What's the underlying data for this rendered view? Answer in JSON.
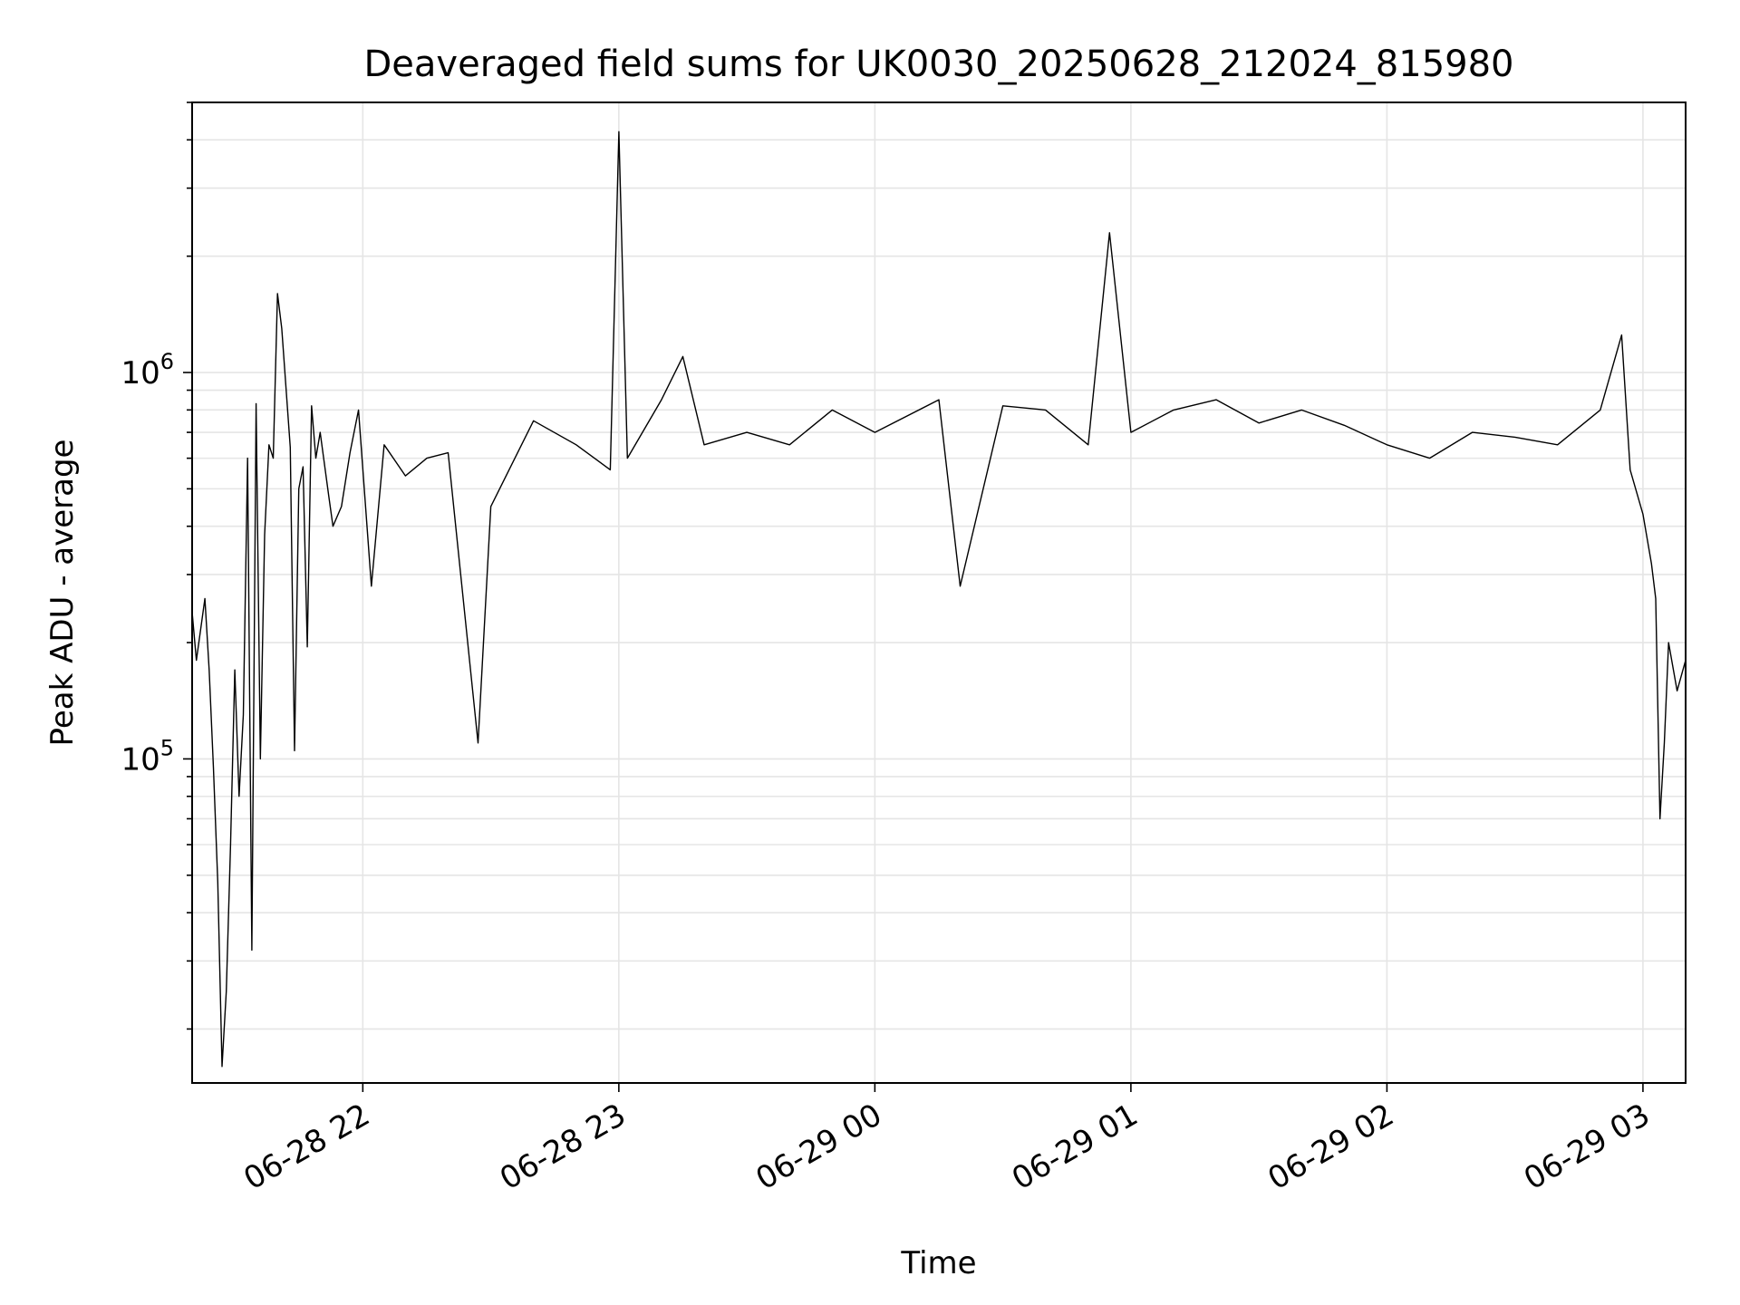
{
  "chart_data": {
    "type": "line",
    "title": "Deaveraged field sums for UK0030_20250628_212024_815980",
    "xlabel": "Time",
    "ylabel": "Peak ADU - average",
    "x_range": [
      "2025-06-28 21:20",
      "2025-06-29 03:10"
    ],
    "y_range": [
      14500,
      5000000
    ],
    "y_scale": "log",
    "grid": "on",
    "x_ticks": [
      {
        "value": "2025-06-28 22:00",
        "label": "06-28 22"
      },
      {
        "value": "2025-06-28 23:00",
        "label": "06-28 23"
      },
      {
        "value": "2025-06-29 00:00",
        "label": "06-29 00"
      },
      {
        "value": "2025-06-29 01:00",
        "label": "06-29 01"
      },
      {
        "value": "2025-06-29 02:00",
        "label": "06-29 02"
      },
      {
        "value": "2025-06-29 03:00",
        "label": "06-29 03"
      }
    ],
    "y_ticks": [
      {
        "value": 100000,
        "base": "10",
        "exp": "5"
      },
      {
        "value": 1000000,
        "base": "10",
        "exp": "6"
      }
    ],
    "colors": {
      "line": "#000000",
      "grid": "#e5e5e5"
    },
    "series": [
      {
        "x": [
          "2025-06-28 21:20",
          "2025-06-28 21:21",
          "2025-06-28 21:23",
          "2025-06-28 21:24",
          "2025-06-28 21:25",
          "2025-06-28 21:26",
          "2025-06-28 21:27",
          "2025-06-28 21:28",
          "2025-06-28 21:29",
          "2025-06-28 21:30",
          "2025-06-28 21:31",
          "2025-06-28 21:32",
          "2025-06-28 21:33",
          "2025-06-28 21:34",
          "2025-06-28 21:35",
          "2025-06-28 21:36",
          "2025-06-28 21:37",
          "2025-06-28 21:38",
          "2025-06-28 21:39",
          "2025-06-28 21:40",
          "2025-06-28 21:41",
          "2025-06-28 21:43",
          "2025-06-28 21:44",
          "2025-06-28 21:45",
          "2025-06-28 21:46",
          "2025-06-28 21:47",
          "2025-06-28 21:48",
          "2025-06-28 21:49",
          "2025-06-28 21:50",
          "2025-06-28 21:52",
          "2025-06-28 21:53",
          "2025-06-28 21:55",
          "2025-06-28 21:57",
          "2025-06-28 21:59",
          "2025-06-28 22:02",
          "2025-06-28 22:05",
          "2025-06-28 22:10",
          "2025-06-28 22:15",
          "2025-06-28 22:20",
          "2025-06-28 22:27",
          "2025-06-28 22:30",
          "2025-06-28 22:40",
          "2025-06-28 22:50",
          "2025-06-28 22:58",
          "2025-06-28 23:00",
          "2025-06-28 23:02",
          "2025-06-28 23:10",
          "2025-06-28 23:15",
          "2025-06-28 23:20",
          "2025-06-28 23:30",
          "2025-06-28 23:40",
          "2025-06-28 23:50",
          "2025-06-29 00:00",
          "2025-06-29 00:15",
          "2025-06-29 00:20",
          "2025-06-29 00:30",
          "2025-06-29 00:40",
          "2025-06-29 00:50",
          "2025-06-29 00:55",
          "2025-06-29 01:00",
          "2025-06-29 01:10",
          "2025-06-29 01:20",
          "2025-06-29 01:30",
          "2025-06-29 01:40",
          "2025-06-29 01:50",
          "2025-06-29 02:00",
          "2025-06-29 02:10",
          "2025-06-29 02:20",
          "2025-06-29 02:30",
          "2025-06-29 02:40",
          "2025-06-29 02:50",
          "2025-06-29 02:55",
          "2025-06-29 02:57",
          "2025-06-29 03:00",
          "2025-06-29 03:02",
          "2025-06-29 03:03",
          "2025-06-29 03:04",
          "2025-06-29 03:05",
          "2025-06-29 03:06",
          "2025-06-29 03:08",
          "2025-06-29 03:10"
        ],
        "y": [
          240000,
          180000,
          260000,
          170000,
          95000,
          48000,
          16000,
          25000,
          60000,
          170000,
          80000,
          130000,
          600000,
          32000,
          830000,
          100000,
          380000,
          650000,
          600000,
          1600000,
          1300000,
          640000,
          105000,
          500000,
          570000,
          195000,
          820000,
          600000,
          700000,
          480000,
          400000,
          450000,
          620000,
          800000,
          280000,
          650000,
          540000,
          600000,
          620000,
          110000,
          450000,
          750000,
          650000,
          560000,
          4200000,
          600000,
          850000,
          1100000,
          650000,
          700000,
          650000,
          800000,
          700000,
          850000,
          280000,
          820000,
          800000,
          650000,
          2300000,
          700000,
          800000,
          850000,
          740000,
          800000,
          730000,
          650000,
          600000,
          700000,
          680000,
          650000,
          800000,
          1250000,
          560000,
          430000,
          320000,
          260000,
          70000,
          110000,
          200000,
          150000,
          180000
        ]
      }
    ]
  }
}
